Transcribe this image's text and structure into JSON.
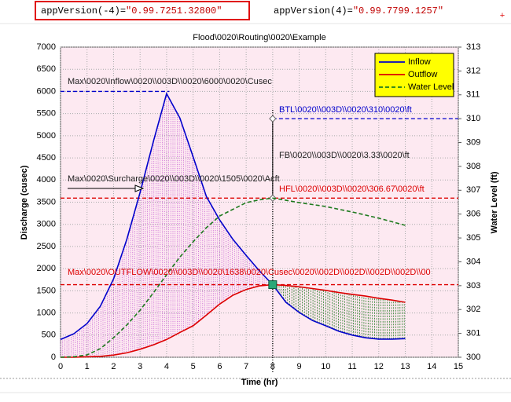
{
  "cells": [
    {
      "formula": "appVersion(-4)=",
      "value": "\"0.99.7251.32800\""
    },
    {
      "formula": "appVersion(4)=",
      "value": "\"0.99.7799.1257\""
    }
  ],
  "cursor": "+",
  "chart_data": {
    "type": "line",
    "title": "Flood\\0020\\Routing\\0020\\Example",
    "xlabel": "Time (hr)",
    "ylabel": "Discharge (cusec)",
    "y2label": "Water Level (ft)",
    "x": [
      0,
      0.5,
      1,
      1.5,
      2,
      2.5,
      3,
      3.5,
      4,
      4.5,
      5,
      5.5,
      6,
      6.5,
      7,
      7.5,
      8,
      8.5,
      9,
      9.5,
      10,
      10.5,
      11,
      11.5,
      12,
      12.5,
      13
    ],
    "series": [
      {
        "name": "Inflow",
        "color": "#0000cc",
        "dash": "none",
        "values": [
          400,
          530,
          760,
          1150,
          1770,
          2660,
          3720,
          4870,
          5950,
          5400,
          4520,
          3630,
          3100,
          2660,
          2300,
          1950,
          1638,
          1240,
          1010,
          830,
          710,
          585,
          500,
          440,
          410,
          410,
          420
        ]
      },
      {
        "name": "Outflow",
        "color": "#dd0000",
        "dash": "none",
        "values": [
          0,
          0,
          10,
          20,
          50,
          100,
          180,
          280,
          400,
          560,
          710,
          950,
          1200,
          1400,
          1530,
          1610,
          1638,
          1620,
          1590,
          1550,
          1510,
          1460,
          1420,
          1380,
          1330,
          1290,
          1240
        ]
      },
      {
        "name": "Water Level",
        "color": "#1e7a1e",
        "dash": "5,3",
        "axis": "y2",
        "values": [
          300,
          300.02,
          300.1,
          300.36,
          300.82,
          301.35,
          301.97,
          302.7,
          303.46,
          304.2,
          304.84,
          305.43,
          305.92,
          306.2,
          306.48,
          306.6,
          306.67,
          306.58,
          306.48,
          306.4,
          306.32,
          306.2,
          306.09,
          305.96,
          305.83,
          305.68,
          305.53
        ]
      }
    ],
    "xlim": [
      0,
      15
    ],
    "xticks": [
      0,
      1,
      2,
      3,
      4,
      5,
      6,
      7,
      8,
      9,
      10,
      11,
      12,
      13,
      14,
      15
    ],
    "ylim": [
      0,
      7000
    ],
    "yticks": [
      0,
      500,
      1000,
      1500,
      2000,
      2500,
      3000,
      3500,
      4000,
      4500,
      5000,
      5500,
      6000,
      6500,
      7000
    ],
    "y2lim": [
      300,
      313
    ],
    "y2ticks": [
      300,
      301,
      302,
      303,
      304,
      305,
      306,
      307,
      308,
      309,
      310,
      311,
      312,
      313
    ],
    "grid": true,
    "legend": "top-right",
    "reference_lines": [
      {
        "axis": "y",
        "value": 6000,
        "color": "#0000cc"
      },
      {
        "axis": "y2",
        "value": 310,
        "color": "#0000cc"
      },
      {
        "axis": "y2",
        "value": 306.67,
        "color": "#dd0000"
      },
      {
        "axis": "y",
        "value": 1638,
        "color": "#dd0000"
      },
      {
        "axis": "x",
        "value": 8,
        "color": "#000000"
      }
    ],
    "annotations": [
      {
        "text": "Max\\0020\\Inflow\\0020\\\\003D\\\\0020\\6000\\0020\\Cusec",
        "color": "#222222"
      },
      {
        "text": "BTL\\0020\\\\003D\\\\0020\\310\\0020\\ft",
        "color": "#0000cc"
      },
      {
        "text": "FB\\0020\\\\003D\\\\0020\\3.33\\0020\\ft",
        "color": "#222222"
      },
      {
        "text": "Max\\0020\\Surcharge\\0020\\\\003D\\\\0020\\1505\\0020\\Acft",
        "color": "#222222"
      },
      {
        "text": "HFL\\0020\\\\003D\\\\0020\\306.67\\0020\\ft",
        "color": "#dd0000"
      },
      {
        "text": "Max\\0020\\OUTFLOW\\0020\\\\003D\\\\0020\\1638\\0020\\Cusec\\0020\\\\002D\\\\002D\\\\002D\\\\002D\\\\00",
        "color": "#dd0000"
      }
    ]
  }
}
